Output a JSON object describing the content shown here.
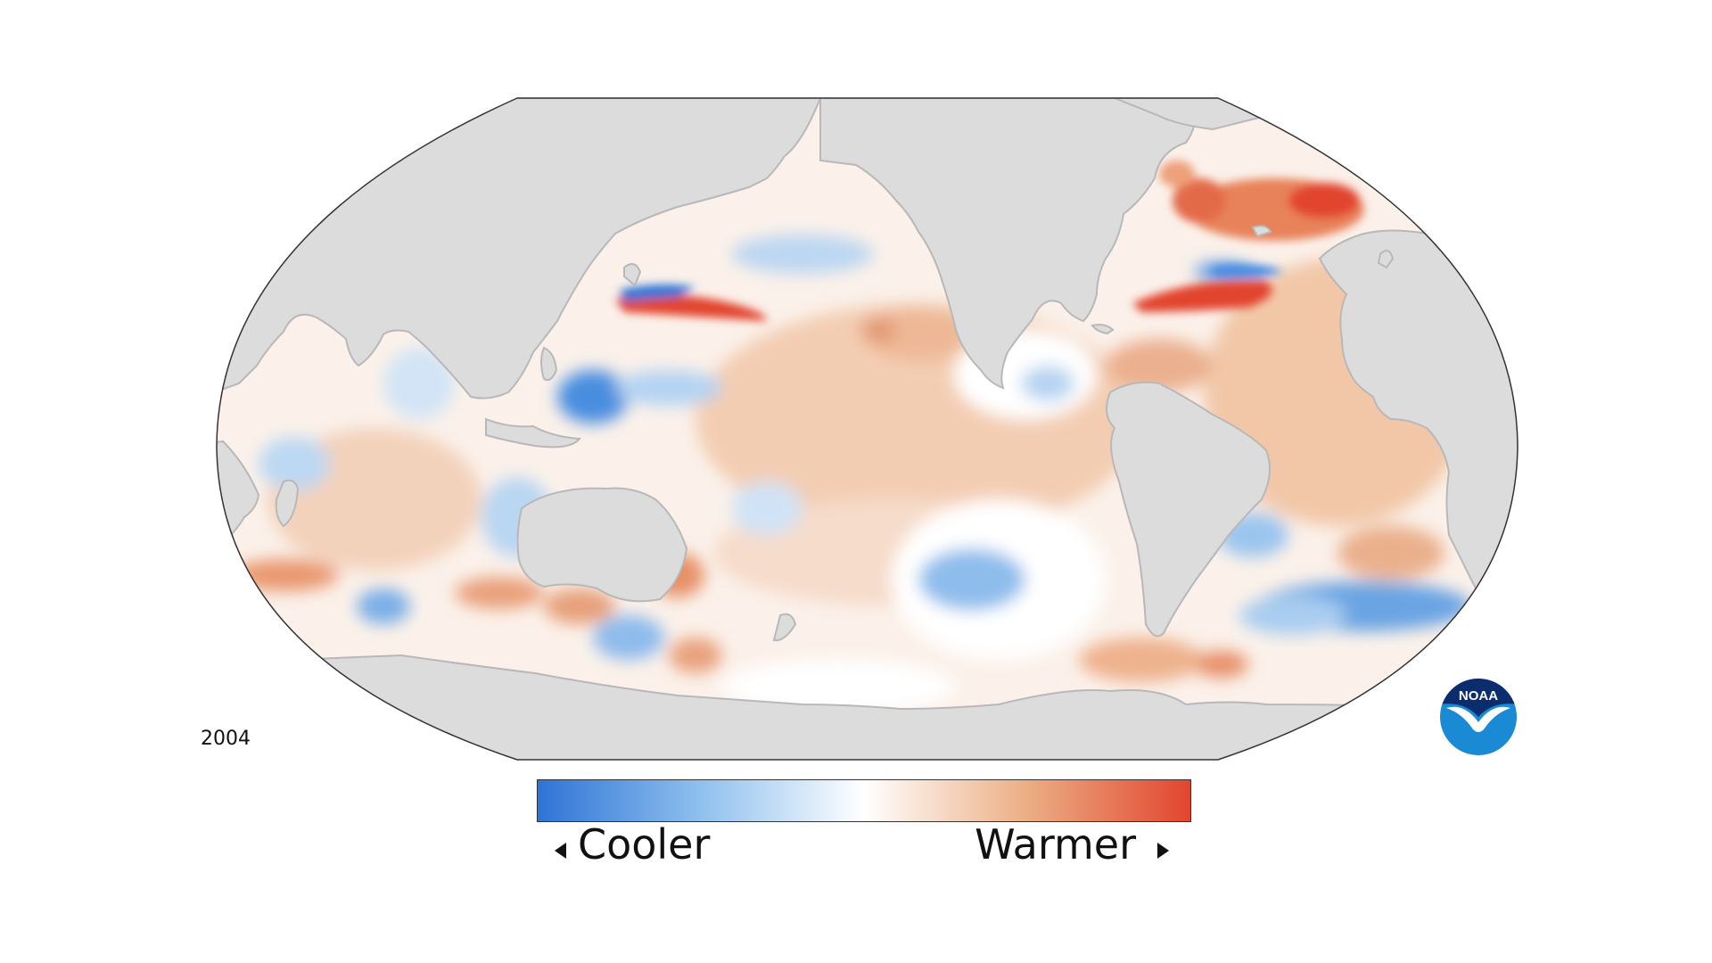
{
  "map": {
    "year": "2004",
    "projection": "Robinson",
    "colors": {
      "land": "#dcdcdc",
      "coast": "#b8b8b8",
      "border": "#333333",
      "cool_strong": "#2e74d6",
      "cool": "#8fc0ee",
      "neutral": "#ffffff",
      "warm": "#ecae84",
      "warm_strong": "#e2452f"
    }
  },
  "legend": {
    "cooler_label": "Cooler",
    "warmer_label": "Warmer",
    "gradient": [
      "#2e74d6",
      "#8fc0ee",
      "#ffffff",
      "#ecae84",
      "#e2452f"
    ],
    "left_arrow_icon": "triangle-left-icon",
    "right_arrow_icon": "triangle-right-icon"
  },
  "logo": {
    "text": "NOAA",
    "icon": "noaa-bird-logo-icon",
    "color_top": "#0b2d6e",
    "color_bottom": "#1a8ad4"
  }
}
